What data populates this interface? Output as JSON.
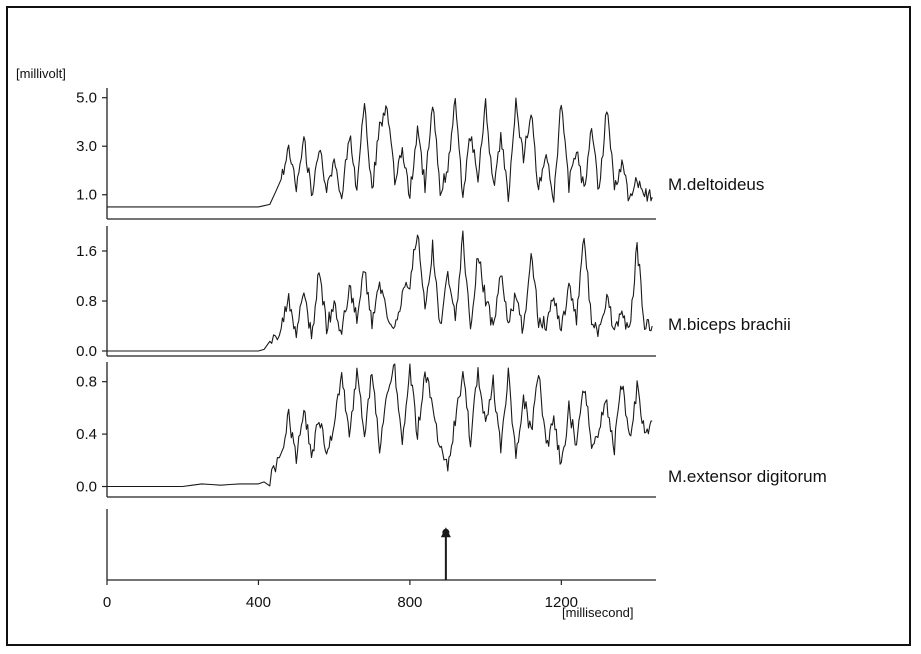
{
  "chart_data": {
    "type": "line",
    "title": "",
    "ylabel_unit": "[millivolt]",
    "xlabel_unit": "[millisecond]",
    "x_range": [
      0,
      1450
    ],
    "x_ticks": [
      "0",
      "400",
      "800",
      "1200"
    ],
    "x_tick_values": [
      0,
      400,
      800,
      1200
    ],
    "colors": {
      "trace": "#1a1a1a",
      "axis": "#222222",
      "frame": "#111111"
    },
    "panels": [
      {
        "name": "M.deltoideus",
        "ylim": [
          0,
          5.4
        ],
        "y_ticks": [
          "5.0",
          "3.0",
          "1.0"
        ],
        "y_tick_values": [
          5.0,
          3.0,
          1.0
        ],
        "baseline": 0.5,
        "onset_ms": 435,
        "series": [
          {
            "name": "M.deltoideus",
            "x": [
              0,
              100,
              200,
              300,
              400,
              430,
              460,
              480,
              500,
              520,
              540,
              560,
              580,
              600,
              620,
              640,
              660,
              680,
              700,
              720,
              740,
              760,
              780,
              800,
              820,
              840,
              860,
              880,
              900,
              920,
              940,
              960,
              980,
              1000,
              1020,
              1040,
              1060,
              1080,
              1100,
              1120,
              1140,
              1160,
              1180,
              1200,
              1220,
              1240,
              1260,
              1280,
              1300,
              1320,
              1340,
              1360,
              1380,
              1400,
              1420,
              1440
            ],
            "y": [
              0.5,
              0.5,
              0.5,
              0.5,
              0.5,
              0.6,
              1.6,
              2.8,
              1.4,
              3.4,
              1.0,
              2.9,
              1.2,
              2.2,
              0.9,
              3.5,
              1.3,
              4.8,
              1.1,
              3.9,
              4.6,
              1.5,
              2.7,
              1.0,
              3.6,
              1.4,
              4.9,
              1.1,
              2.2,
              4.8,
              0.8,
              3.5,
              1.6,
              4.7,
              1.3,
              3.3,
              1.0,
              4.8,
              2.4,
              4.5,
              1.2,
              2.5,
              0.9,
              4.9,
              1.4,
              3.0,
              1.2,
              3.9,
              1.0,
              4.6,
              1.3,
              2.3,
              0.8,
              1.6,
              1.0,
              0.9
            ]
          }
        ]
      },
      {
        "name": "M.biceps brachii",
        "ylim": [
          -0.08,
          2.0
        ],
        "y_ticks": [
          "1.6",
          "0.8",
          "0.0"
        ],
        "y_tick_values": [
          1.6,
          0.8,
          0.0
        ],
        "baseline": 0.0,
        "onset_ms": 425,
        "series": [
          {
            "name": "M.biceps brachii",
            "x": [
              0,
              100,
              200,
              300,
              400,
              430,
              460,
              480,
              500,
              520,
              540,
              560,
              580,
              600,
              620,
              640,
              660,
              680,
              700,
              720,
              740,
              760,
              780,
              800,
              820,
              840,
              860,
              880,
              900,
              920,
              940,
              960,
              980,
              1000,
              1020,
              1040,
              1060,
              1080,
              1100,
              1120,
              1140,
              1160,
              1180,
              1200,
              1220,
              1240,
              1260,
              1280,
              1300,
              1320,
              1340,
              1360,
              1380,
              1400,
              1420,
              1440
            ],
            "y": [
              0.0,
              0.0,
              0.0,
              0.0,
              0.0,
              0.05,
              0.4,
              0.8,
              0.3,
              1.0,
              0.2,
              1.3,
              0.4,
              0.7,
              0.3,
              1.0,
              0.5,
              1.3,
              0.4,
              1.1,
              0.6,
              0.3,
              0.9,
              1.1,
              1.9,
              0.6,
              1.7,
              0.4,
              1.2,
              0.5,
              1.8,
              0.3,
              1.6,
              0.8,
              0.4,
              1.2,
              0.5,
              0.9,
              0.3,
              1.6,
              0.5,
              0.4,
              0.9,
              0.3,
              1.1,
              0.5,
              1.9,
              0.4,
              0.3,
              0.9,
              0.3,
              0.6,
              0.3,
              1.7,
              0.4,
              0.4
            ]
          }
        ]
      },
      {
        "name": "M.extensor digitorum",
        "ylim": [
          -0.08,
          0.95
        ],
        "y_ticks": [
          "0.8",
          "0.4",
          "0.0"
        ],
        "y_tick_values": [
          0.8,
          0.4,
          0.0
        ],
        "baseline": 0.0,
        "onset_ms": 420,
        "series": [
          {
            "name": "M.extensor digitorum",
            "x": [
              0,
              100,
              200,
              250,
              300,
              350,
              400,
              430,
              460,
              480,
              500,
              520,
              540,
              560,
              580,
              600,
              620,
              640,
              660,
              680,
              700,
              720,
              740,
              760,
              780,
              800,
              820,
              840,
              860,
              880,
              900,
              920,
              940,
              960,
              980,
              1000,
              1020,
              1040,
              1060,
              1080,
              1100,
              1120,
              1140,
              1160,
              1180,
              1200,
              1220,
              1240,
              1260,
              1280,
              1300,
              1320,
              1340,
              1360,
              1380,
              1400,
              1420,
              1440
            ],
            "y": [
              0.0,
              0.0,
              0.0,
              0.02,
              0.01,
              0.02,
              0.02,
              0.05,
              0.25,
              0.55,
              0.2,
              0.6,
              0.25,
              0.5,
              0.3,
              0.45,
              0.88,
              0.35,
              0.85,
              0.4,
              0.88,
              0.3,
              0.75,
              0.9,
              0.35,
              0.88,
              0.4,
              0.9,
              0.6,
              0.3,
              0.15,
              0.5,
              0.85,
              0.35,
              0.88,
              0.45,
              0.8,
              0.3,
              0.85,
              0.2,
              0.7,
              0.4,
              0.88,
              0.3,
              0.5,
              0.15,
              0.6,
              0.3,
              0.75,
              0.35,
              0.45,
              0.65,
              0.3,
              0.8,
              0.35,
              0.75,
              0.4,
              0.5
            ]
          }
        ]
      },
      {
        "name": "stimulus",
        "ylim": [
          0,
          1
        ],
        "y_ticks": [],
        "y_tick_values": [],
        "baseline": 0.0,
        "event_ms": 895,
        "event_height": 0.7
      }
    ]
  }
}
